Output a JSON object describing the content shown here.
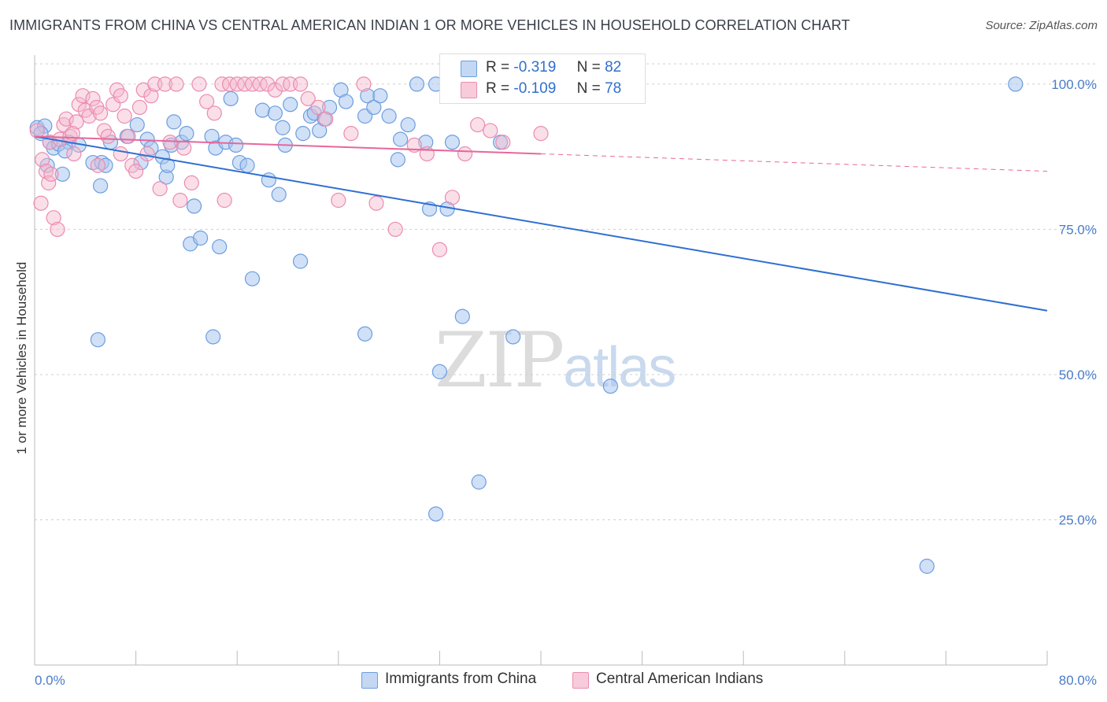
{
  "title": "IMMIGRANTS FROM CHINA VS CENTRAL AMERICAN INDIAN 1 OR MORE VEHICLES IN HOUSEHOLD CORRELATION CHART",
  "source": "Source: ZipAtlas.com",
  "watermark": {
    "zip": "ZIP",
    "atlas": "atlas"
  },
  "legend": {
    "r_label": "R =",
    "n_label": "N =",
    "series": [
      {
        "r": "-0.319",
        "n": "82"
      },
      {
        "r": "-0.109",
        "n": "78"
      }
    ]
  },
  "bottom_legend": [
    "Immigrants from China",
    "Central American Indians"
  ],
  "colors": {
    "blue": "#2f6fd0",
    "blue_fill": "#a9c6ee",
    "pink": "#e8679a",
    "pink_fill": "#f5b9cd",
    "tick": "#4a7cc9",
    "grid": "#cfcfcf"
  },
  "chart_data": {
    "type": "scatter",
    "title": "IMMIGRANTS FROM CHINA VS CENTRAL AMERICAN INDIAN 1 OR MORE VEHICLES IN HOUSEHOLD CORRELATION CHART",
    "xlabel": "",
    "ylabel": "1 or more Vehicles in Household",
    "xlim": [
      0,
      80
    ],
    "ylim": [
      0,
      105
    ],
    "x_tick_labels": [
      "0.0%",
      "80.0%"
    ],
    "y_tick_labels": [
      "25.0%",
      "50.0%",
      "75.0%",
      "100.0%"
    ],
    "y_ticks": [
      25,
      50,
      75,
      100
    ],
    "grid": true,
    "series": [
      {
        "name": "Immigrants from China",
        "color": "blue",
        "trend": {
          "x0": 0,
          "y0": 91.0,
          "x1": 80,
          "y1": 61.0,
          "dashed_from": null
        },
        "points": [
          [
            0.2,
            92.5
          ],
          [
            0.8,
            92.8
          ],
          [
            0.5,
            91.5
          ],
          [
            1.2,
            90.0
          ],
          [
            1.5,
            89.0
          ],
          [
            1.9,
            89.7
          ],
          [
            2.7,
            90.0
          ],
          [
            2.2,
            84.5
          ],
          [
            2.4,
            88.5
          ],
          [
            4.6,
            86.5
          ],
          [
            5.3,
            86.5
          ],
          [
            5.6,
            86.0
          ],
          [
            6.0,
            90.0
          ],
          [
            7.3,
            91.0
          ],
          [
            8.1,
            93.0
          ],
          [
            8.9,
            90.5
          ],
          [
            9.2,
            89.0
          ],
          [
            10.1,
            87.5
          ],
          [
            10.4,
            84.0
          ],
          [
            10.8,
            89.5
          ],
          [
            11.0,
            93.5
          ],
          [
            11.6,
            90.0
          ],
          [
            12.6,
            79.0
          ],
          [
            12.3,
            72.5
          ],
          [
            13.1,
            73.5
          ],
          [
            14.0,
            91.0
          ],
          [
            14.3,
            89.0
          ],
          [
            14.6,
            72.0
          ],
          [
            15.1,
            90.0
          ],
          [
            15.5,
            97.5
          ],
          [
            15.9,
            89.5
          ],
          [
            16.2,
            86.5
          ],
          [
            17.2,
            66.5
          ],
          [
            18.0,
            95.5
          ],
          [
            18.5,
            83.5
          ],
          [
            19.0,
            95.0
          ],
          [
            19.3,
            81.0
          ],
          [
            19.6,
            92.5
          ],
          [
            19.8,
            89.5
          ],
          [
            20.2,
            96.5
          ],
          [
            21.0,
            69.5
          ],
          [
            21.8,
            94.5
          ],
          [
            22.1,
            95.0
          ],
          [
            22.5,
            92.0
          ],
          [
            22.9,
            94.0
          ],
          [
            23.3,
            96.0
          ],
          [
            24.2,
            99.0
          ],
          [
            26.1,
            94.5
          ],
          [
            26.3,
            98.0
          ],
          [
            26.8,
            96.0
          ],
          [
            27.3,
            98.0
          ],
          [
            28.0,
            94.5
          ],
          [
            28.7,
            87.0
          ],
          [
            28.9,
            90.5
          ],
          [
            30.2,
            100.0
          ],
          [
            30.9,
            90.0
          ],
          [
            31.2,
            78.5
          ],
          [
            31.7,
            100.0
          ],
          [
            32.6,
            78.5
          ],
          [
            33.0,
            90.0
          ],
          [
            36.8,
            90.0
          ],
          [
            5.0,
            56.0
          ],
          [
            14.1,
            56.5
          ],
          [
            26.1,
            57.0
          ],
          [
            32.0,
            50.5
          ],
          [
            33.8,
            60.0
          ],
          [
            35.1,
            31.5
          ],
          [
            31.7,
            26.0
          ],
          [
            37.8,
            56.5
          ],
          [
            45.5,
            48.0
          ],
          [
            70.5,
            17.0
          ],
          [
            77.5,
            100.0
          ],
          [
            10.5,
            86.0
          ],
          [
            12.0,
            91.5
          ],
          [
            21.2,
            91.5
          ],
          [
            3.5,
            89.5
          ],
          [
            5.2,
            82.5
          ],
          [
            8.4,
            86.5
          ],
          [
            16.8,
            86.0
          ],
          [
            24.6,
            97.0
          ],
          [
            29.5,
            93.0
          ],
          [
            1.0,
            86.0
          ]
        ]
      },
      {
        "name": "Central American Indians",
        "color": "pink",
        "trend": {
          "x0": 0,
          "y0": 91.0,
          "x1": 80,
          "y1": 85.0,
          "dashed_from": 40
        },
        "points": [
          [
            0.2,
            92.0
          ],
          [
            0.5,
            79.5
          ],
          [
            0.6,
            87.0
          ],
          [
            0.9,
            85.0
          ],
          [
            1.1,
            83.0
          ],
          [
            1.3,
            84.5
          ],
          [
            1.5,
            77.0
          ],
          [
            1.8,
            75.0
          ],
          [
            1.2,
            90.0
          ],
          [
            2.0,
            90.5
          ],
          [
            2.3,
            93.0
          ],
          [
            2.5,
            94.0
          ],
          [
            2.8,
            91.0
          ],
          [
            3.1,
            88.0
          ],
          [
            3.3,
            93.5
          ],
          [
            3.5,
            96.5
          ],
          [
            3.8,
            98.0
          ],
          [
            4.0,
            95.5
          ],
          [
            4.3,
            94.5
          ],
          [
            4.6,
            97.5
          ],
          [
            4.9,
            96.0
          ],
          [
            5.2,
            95.0
          ],
          [
            5.5,
            92.0
          ],
          [
            5.8,
            91.0
          ],
          [
            6.2,
            96.5
          ],
          [
            6.5,
            99.0
          ],
          [
            6.8,
            98.0
          ],
          [
            7.1,
            94.5
          ],
          [
            7.4,
            91.0
          ],
          [
            7.7,
            86.0
          ],
          [
            8.0,
            85.0
          ],
          [
            8.3,
            96.0
          ],
          [
            8.6,
            99.0
          ],
          [
            8.9,
            88.0
          ],
          [
            9.2,
            98.0
          ],
          [
            9.5,
            100.0
          ],
          [
            9.9,
            82.0
          ],
          [
            10.3,
            100.0
          ],
          [
            10.7,
            90.0
          ],
          [
            11.2,
            100.0
          ],
          [
            11.8,
            89.0
          ],
          [
            12.4,
            83.0
          ],
          [
            13.0,
            100.0
          ],
          [
            13.6,
            97.0
          ],
          [
            14.2,
            95.0
          ],
          [
            14.8,
            100.0
          ],
          [
            15.4,
            100.0
          ],
          [
            16.0,
            100.0
          ],
          [
            16.6,
            100.0
          ],
          [
            17.2,
            100.0
          ],
          [
            17.8,
            100.0
          ],
          [
            18.4,
            100.0
          ],
          [
            19.0,
            99.0
          ],
          [
            19.6,
            100.0
          ],
          [
            20.2,
            100.0
          ],
          [
            21.0,
            100.0
          ],
          [
            21.6,
            97.5
          ],
          [
            22.4,
            96.0
          ],
          [
            23.0,
            94.0
          ],
          [
            24.0,
            80.0
          ],
          [
            25.0,
            91.5
          ],
          [
            26.0,
            100.0
          ],
          [
            27.0,
            79.5
          ],
          [
            28.5,
            75.0
          ],
          [
            30.0,
            89.5
          ],
          [
            31.0,
            88.0
          ],
          [
            32.0,
            71.5
          ],
          [
            33.0,
            80.5
          ],
          [
            34.0,
            88.0
          ],
          [
            35.0,
            93.0
          ],
          [
            36.0,
            92.0
          ],
          [
            37.0,
            90.0
          ],
          [
            40.0,
            91.5
          ],
          [
            15.0,
            80.0
          ],
          [
            11.5,
            80.0
          ],
          [
            5.0,
            86.0
          ],
          [
            6.8,
            88.0
          ],
          [
            3.0,
            91.5
          ]
        ]
      }
    ]
  }
}
